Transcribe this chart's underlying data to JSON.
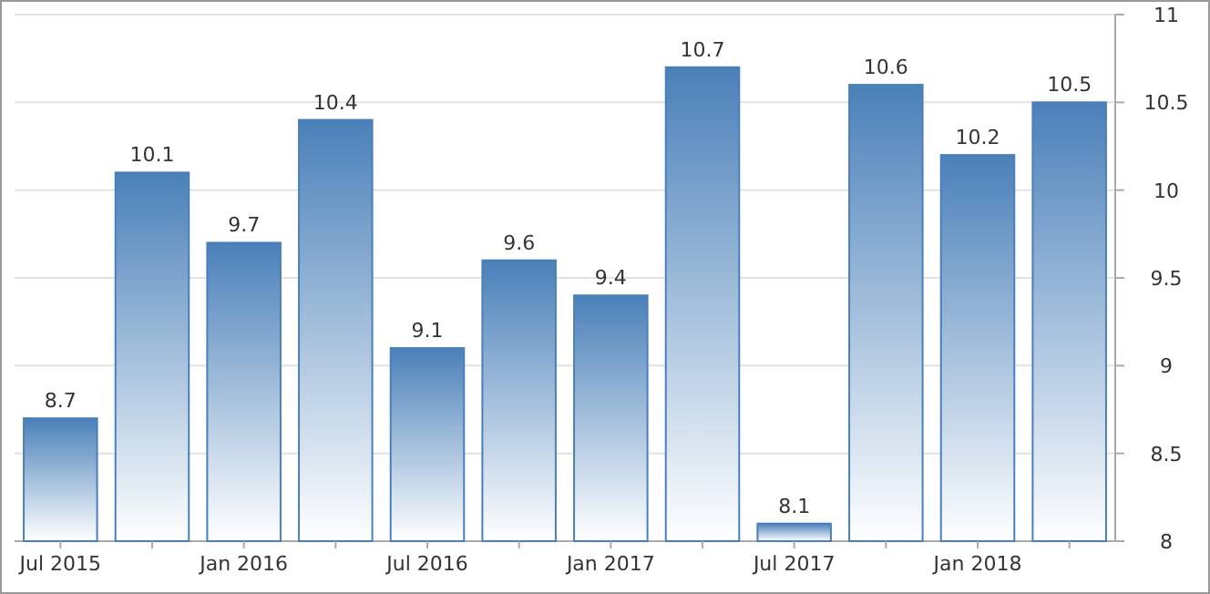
{
  "chart_data": {
    "type": "bar",
    "categories": [
      "Jul 2015",
      null,
      "Jan 2016",
      null,
      "Jul 2016",
      null,
      "Jan 2017",
      null,
      "Jul 2017",
      null,
      "Jan 2018",
      null
    ],
    "values": [
      8.7,
      10.1,
      9.7,
      10.4,
      9.1,
      9.6,
      9.4,
      10.7,
      8.1,
      10.6,
      10.2,
      10.5
    ],
    "color": "#4a80b9",
    "ylim": [
      8,
      11
    ],
    "yticks": [
      8,
      8.5,
      9,
      9.5,
      10,
      10.5,
      11
    ],
    "grid": "y",
    "data_labels": true
  }
}
